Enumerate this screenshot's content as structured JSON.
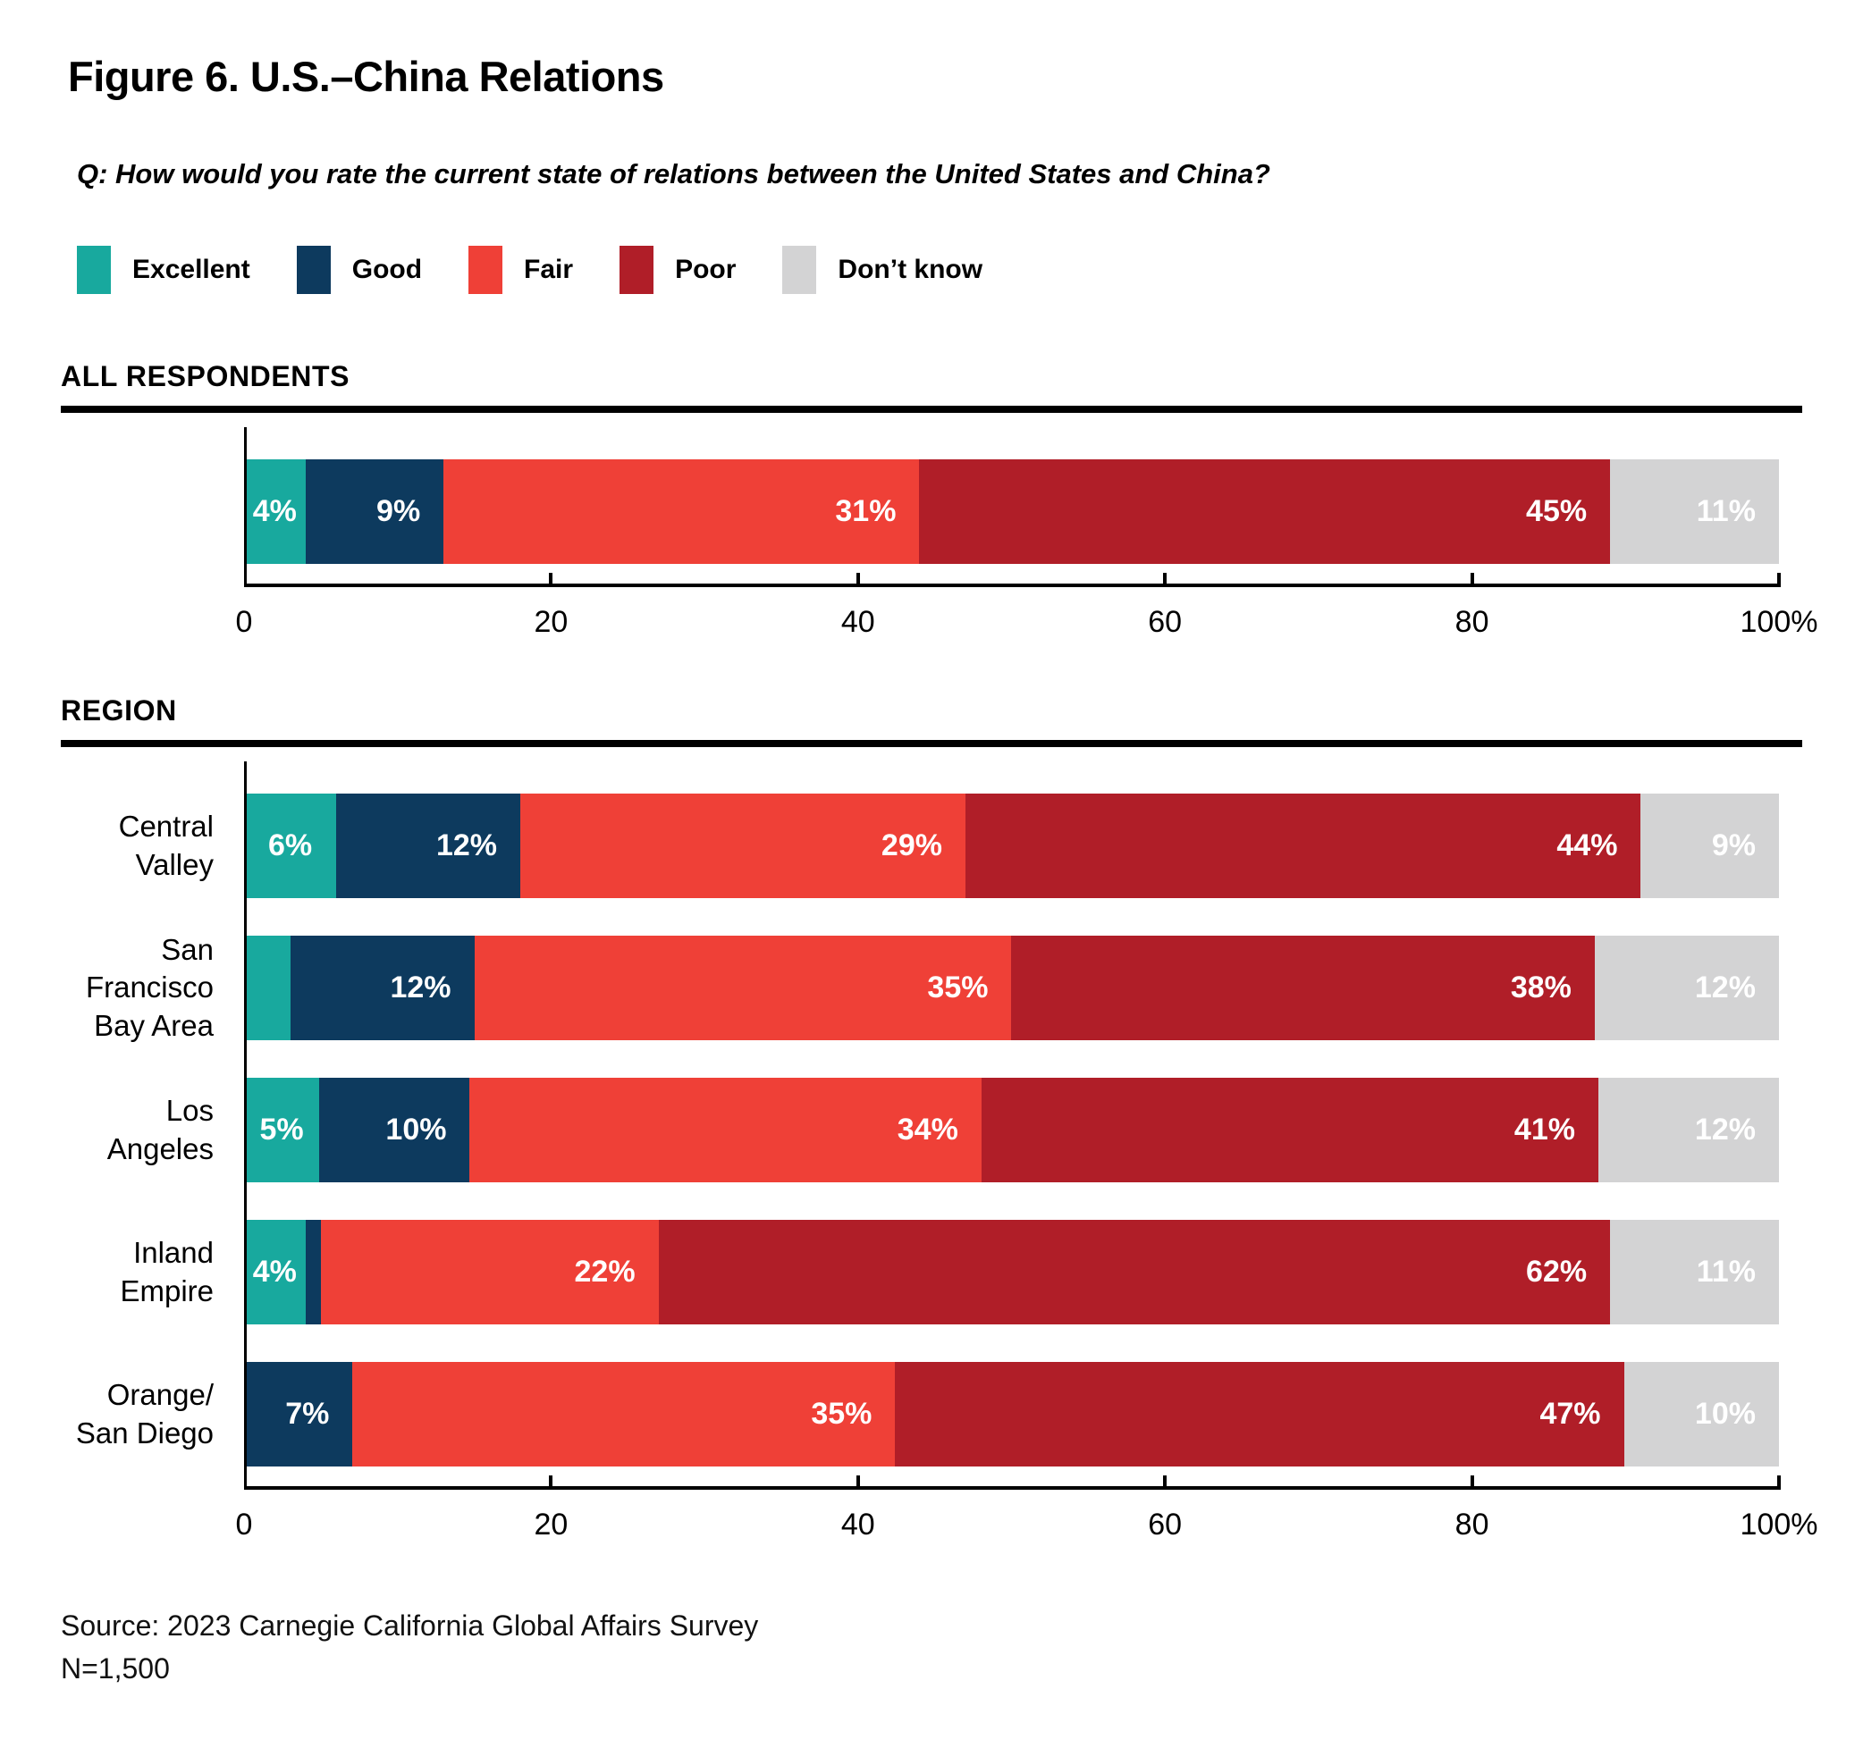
{
  "page": {
    "title": "Figure 6. U.S.–China Relations",
    "question": "Q: How would you rate the current state of relations between the United States and China?",
    "source_line1": "Source: 2023 Carnegie California Global Affairs Survey",
    "source_line2": "N=1,500"
  },
  "legend": {
    "items": [
      {
        "label": "Excellent",
        "color": "#18A99E"
      },
      {
        "label": "Good",
        "color": "#0D3A5E"
      },
      {
        "label": "Fair",
        "color": "#EF4037"
      },
      {
        "label": "Poor",
        "color": "#B01E28"
      },
      {
        "label": "Don’t know",
        "color": "#D3D3D4"
      }
    ]
  },
  "chart_data": {
    "type": "bar",
    "stacked": true,
    "orientation": "horizontal",
    "unit": "percent",
    "legend_position": "top",
    "series_names": [
      "Excellent",
      "Good",
      "Fair",
      "Poor",
      "Don't know"
    ],
    "series_colors": [
      "#18A99E",
      "#0D3A5E",
      "#EF4037",
      "#B01E28",
      "#D3D3D4"
    ],
    "x_axis": {
      "min": 0,
      "max": 100,
      "ticks": [
        0,
        20,
        40,
        60,
        80,
        100
      ],
      "tick_labels": [
        "0",
        "20",
        "40",
        "60",
        "80",
        "100%"
      ]
    },
    "groups": [
      {
        "heading": "ALL RESPONDENTS",
        "rows": [
          {
            "category": "",
            "category_lines": [],
            "values": [
              4,
              9,
              31,
              45,
              11
            ],
            "labels": [
              "4%",
              "9%",
              "31%",
              "45%",
              "11%"
            ]
          }
        ]
      },
      {
        "heading": "REGION",
        "rows": [
          {
            "category": "Central Valley",
            "category_lines": [
              "Central Valley"
            ],
            "values": [
              6,
              12,
              29,
              44,
              9
            ],
            "labels": [
              "6%",
              "12%",
              "29%",
              "44%",
              "9%"
            ]
          },
          {
            "category": "San Francisco Bay Area",
            "category_lines": [
              "San Francisco",
              "Bay Area"
            ],
            "values": [
              3,
              12,
              35,
              38,
              12
            ],
            "labels": [
              "",
              "12%",
              "35%",
              "38%",
              "12%"
            ]
          },
          {
            "category": "Los Angeles",
            "category_lines": [
              "Los Angeles"
            ],
            "values": [
              5,
              10,
              34,
              41,
              12
            ],
            "labels": [
              "5%",
              "10%",
              "34%",
              "41%",
              "12%"
            ]
          },
          {
            "category": "Inland Empire",
            "category_lines": [
              "Inland Empire"
            ],
            "values": [
              4,
              1,
              22,
              62,
              11
            ],
            "labels": [
              "4%",
              "",
              "22%",
              "62%",
              "11%"
            ]
          },
          {
            "category": "Orange/ San Diego",
            "category_lines": [
              "Orange/",
              "San Diego"
            ],
            "values": [
              0,
              7,
              35,
              47,
              10
            ],
            "labels": [
              "",
              "7%",
              "35%",
              "47%",
              "10%"
            ]
          }
        ]
      }
    ]
  }
}
